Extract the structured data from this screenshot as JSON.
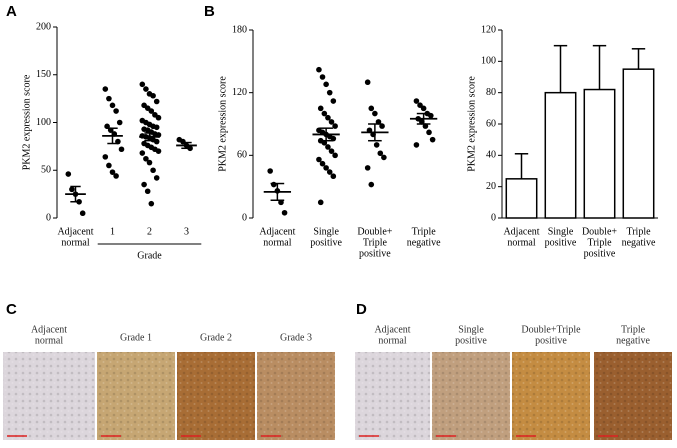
{
  "chart_data": [
    {
      "type": "dot",
      "panel": "A",
      "ylabel": "PKM2 expression score",
      "categories": [
        [
          "Adjacent",
          "normal"
        ],
        [
          "1"
        ],
        [
          "2"
        ],
        [
          "3"
        ]
      ],
      "x_group_label": "Grade",
      "ylim": [
        0,
        200
      ],
      "yticks": [
        0,
        50,
        100,
        150,
        200
      ],
      "groups": [
        {
          "points": [
            46,
            30,
            25,
            17,
            5
          ],
          "mean": 25,
          "sem": 8
        },
        {
          "points": [
            135,
            125,
            118,
            112,
            100,
            96,
            92,
            88,
            80,
            72,
            64,
            55,
            48,
            44
          ],
          "mean": 86,
          "sem": 8
        },
        {
          "points": [
            140,
            135,
            130,
            128,
            122,
            118,
            115,
            112,
            108,
            105,
            102,
            100,
            98,
            96,
            95,
            93,
            92,
            90,
            88,
            87,
            86,
            85,
            84,
            82,
            80,
            78,
            76,
            74,
            72,
            70,
            68,
            62,
            58,
            50,
            42,
            35,
            28,
            15
          ],
          "mean": 85,
          "sem": 4
        },
        {
          "points": [
            82,
            80,
            76,
            73
          ],
          "mean": 76,
          "sem": 3
        }
      ]
    },
    {
      "type": "dot",
      "panel": "B",
      "ylabel": "PKM2 expression score",
      "categories": [
        [
          "Adjacent",
          "normal"
        ],
        [
          "Single",
          "positive"
        ],
        [
          "Double+",
          "Triple",
          "positive"
        ],
        [
          "Triple",
          "negative"
        ]
      ],
      "ylim": [
        0,
        180
      ],
      "yticks": [
        0,
        60,
        120,
        180
      ],
      "groups": [
        {
          "points": [
            45,
            32,
            26,
            15,
            5
          ],
          "mean": 25,
          "sem": 8
        },
        {
          "points": [
            142,
            135,
            128,
            120,
            112,
            105,
            100,
            96,
            92,
            88,
            84,
            82,
            80,
            78,
            76,
            74,
            72,
            68,
            64,
            60,
            56,
            52,
            48,
            44,
            40,
            15
          ],
          "mean": 80,
          "sem": 6
        },
        {
          "points": [
            130,
            105,
            100,
            92,
            88,
            84,
            80,
            70,
            62,
            58,
            48,
            32
          ],
          "mean": 82,
          "sem": 8
        },
        {
          "points": [
            112,
            108,
            105,
            100,
            98,
            95,
            92,
            88,
            82,
            75,
            70
          ],
          "mean": 95,
          "sem": 5
        }
      ]
    },
    {
      "type": "bar",
      "ylabel": "PKM2 expression score",
      "categories": [
        [
          "Adjacent",
          "normal"
        ],
        [
          "Single",
          "positive"
        ],
        [
          "Double+",
          "Triple",
          "positive"
        ],
        [
          "Triple",
          "negative"
        ]
      ],
      "ylim": [
        0,
        120
      ],
      "yticks": [
        0,
        20,
        40,
        60,
        80,
        100,
        120
      ],
      "values": [
        25,
        80,
        82,
        95
      ],
      "errors": [
        16,
        30,
        28,
        13
      ],
      "color": "#ffffff"
    }
  ],
  "image_panels": [
    {
      "label": "C",
      "captions": [
        [
          "Adjacent",
          "normal"
        ],
        [
          "Grade 1"
        ],
        [
          "Grade 2"
        ],
        [
          "Grade 3"
        ]
      ]
    },
    {
      "label": "D",
      "captions": [
        [
          "Adjacent",
          "normal"
        ],
        [
          "Single",
          "positive"
        ],
        [
          "Double+Triple",
          "positive"
        ],
        [
          "Triple",
          "negative"
        ]
      ]
    }
  ]
}
